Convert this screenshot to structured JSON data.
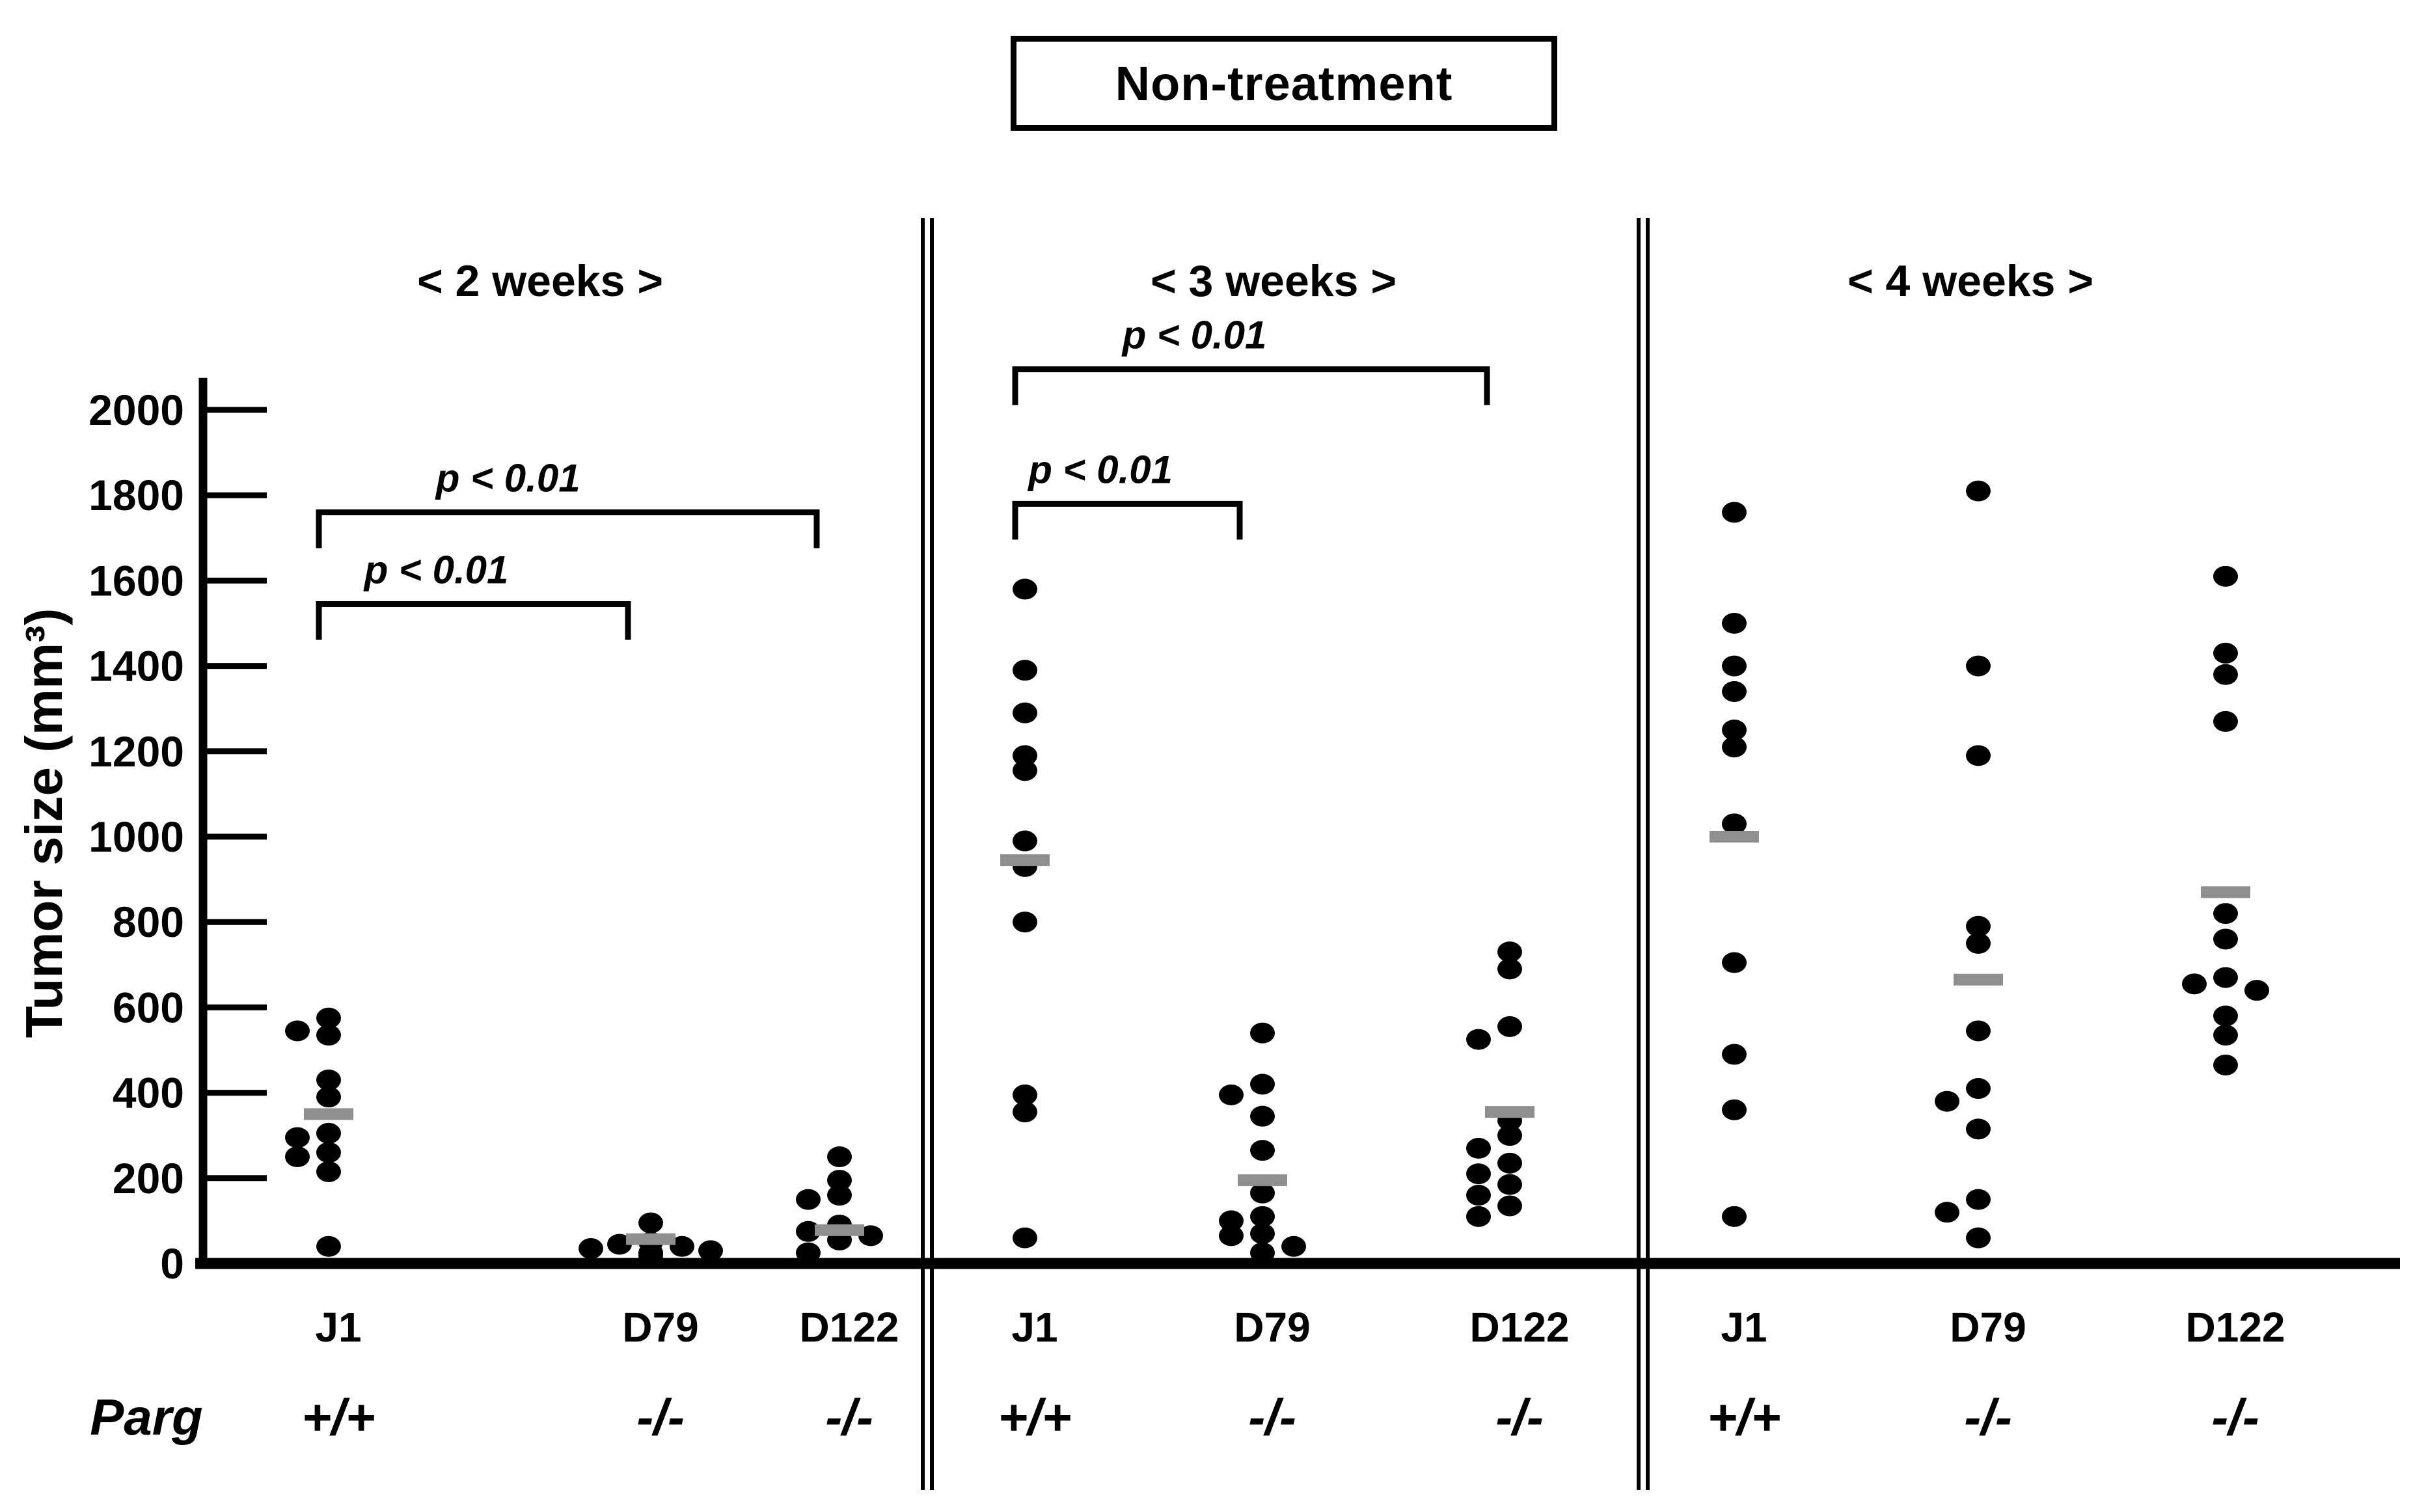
{
  "title": "Non-treatment",
  "y_axis": {
    "label": "Tumor size (mm³)",
    "min": 0,
    "max": 2000,
    "tick_step": 200,
    "tick_labels": [
      "0",
      "200",
      "400",
      "600",
      "800",
      "1000",
      "1200",
      "1400",
      "1600",
      "1800",
      "2000"
    ]
  },
  "x_axis": {
    "genotype_row_label": "Parg",
    "cell_lines": [
      "J1",
      "D79",
      "D122"
    ],
    "genotypes": [
      "+/+",
      "-/-",
      "-/-"
    ]
  },
  "chart_data": {
    "type": "scatter",
    "title": "Non-treatment",
    "xlabel": "",
    "ylabel": "Tumor size (mm³)",
    "ylim": [
      0,
      2075
    ],
    "yticks": [
      0,
      200,
      400,
      600,
      800,
      1000,
      1200,
      1400,
      1600,
      1800,
      2000
    ],
    "grid": false,
    "point_color": "#000000",
    "mean_bar_color": "#8f8f8f",
    "panels": [
      {
        "label": "< 2 weeks >",
        "groups": [
          {
            "cell_line": "J1",
            "parg_genotype": "+/+",
            "mean": 350,
            "values": [
              575,
              545,
              535,
              430,
              390,
              305,
              295,
              260,
              250,
              215,
              40
            ]
          },
          {
            "cell_line": "D79",
            "parg_genotype": "-/-",
            "mean": 57,
            "values": [
              95,
              50,
              45,
              40,
              35,
              30,
              25,
              20,
              12
            ]
          },
          {
            "cell_line": "D122",
            "parg_genotype": "-/-",
            "mean": 78,
            "values": [
              250,
              195,
              160,
              150,
              90,
              75,
              65,
              55,
              25
            ]
          }
        ],
        "significance": [
          {
            "from": "J1",
            "to": "D79",
            "label": "p < 0.01",
            "bar_value": 1545
          },
          {
            "from": "J1",
            "to": "D122",
            "label": "p < 0.01",
            "bar_value": 1760
          }
        ]
      },
      {
        "label": "< 3 weeks >",
        "groups": [
          {
            "cell_line": "J1",
            "parg_genotype": "+/+",
            "mean": 945,
            "values": [
              1580,
              1390,
              1290,
              1190,
              1155,
              990,
              930,
              800,
              395,
              355,
              60
            ]
          },
          {
            "cell_line": "D79",
            "parg_genotype": "-/-",
            "mean": 195,
            "values": [
              540,
              420,
              395,
              345,
              265,
              165,
              110,
              100,
              70,
              65,
              40,
              25
            ]
          },
          {
            "cell_line": "D122",
            "parg_genotype": "-/-",
            "mean": 355,
            "values": [
              730,
              690,
              555,
              525,
              335,
              300,
              270,
              235,
              210,
              185,
              160,
              135,
              110
            ]
          }
        ],
        "significance": [
          {
            "from": "J1",
            "to": "D79",
            "label": "p < 0.01",
            "bar_value": 1780
          },
          {
            "from": "J1",
            "to": "D122",
            "label": "p < 0.01",
            "bar_value": 2095
          }
        ]
      },
      {
        "label": "< 4 weeks >",
        "groups": [
          {
            "cell_line": "J1",
            "parg_genotype": "+/+",
            "mean": 1000,
            "values": [
              1760,
              1500,
              1400,
              1340,
              1250,
              1210,
              1030,
              705,
              490,
              360,
              110
            ]
          },
          {
            "cell_line": "D79",
            "parg_genotype": "-/-",
            "mean": 665,
            "values": [
              1810,
              1400,
              1190,
              790,
              750,
              545,
              410,
              380,
              315,
              150,
              120,
              60
            ]
          },
          {
            "cell_line": "D122",
            "parg_genotype": "-/-",
            "mean": 870,
            "values": [
              1610,
              1430,
              1380,
              1270,
              820,
              760,
              670,
              655,
              640,
              580,
              535,
              465
            ]
          }
        ],
        "significance": []
      }
    ]
  }
}
